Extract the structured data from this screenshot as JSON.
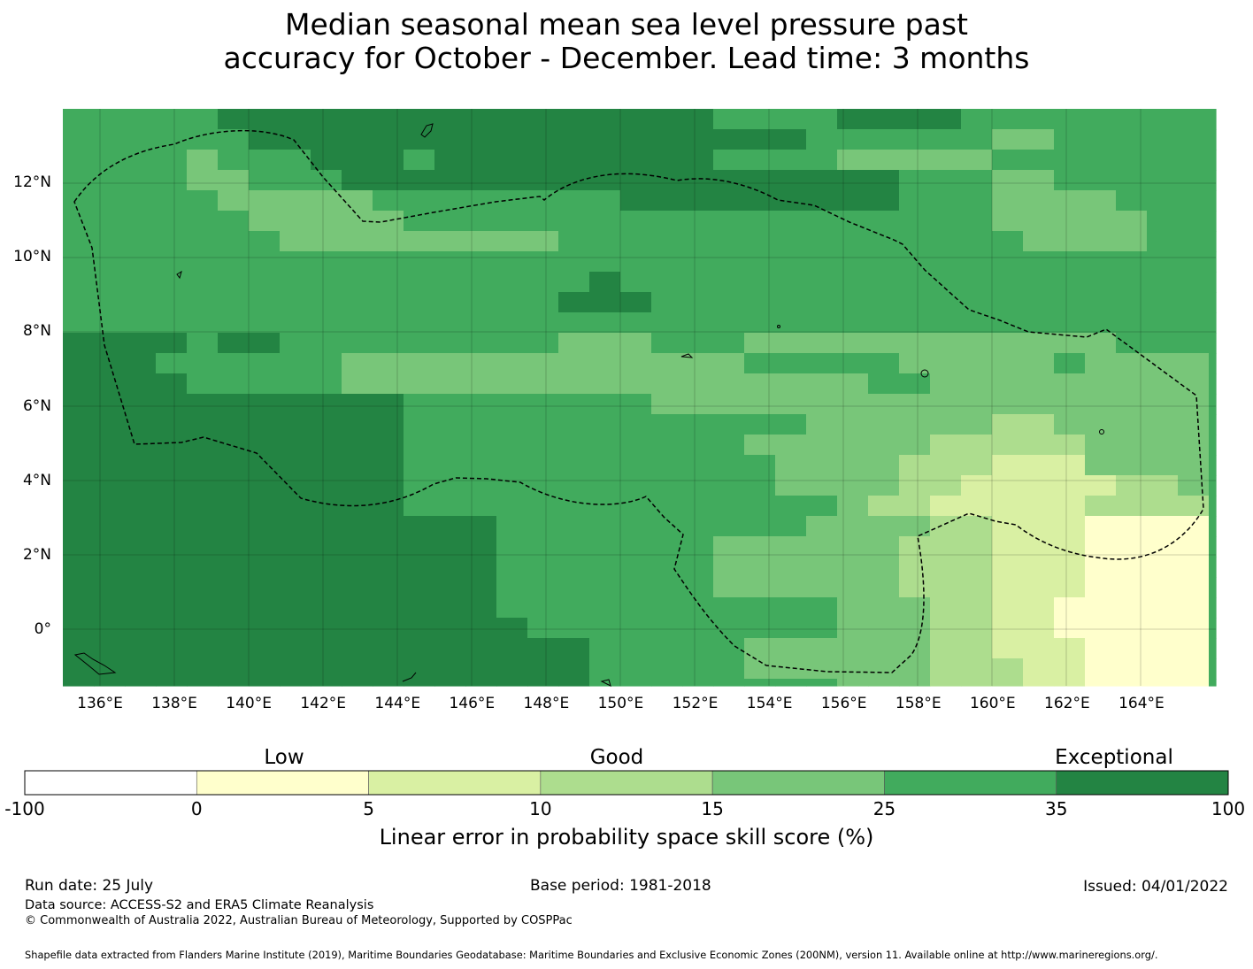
{
  "title": {
    "line1": "Median seasonal mean sea level pressure past",
    "line2": "accuracy for October - December. Lead time: 3 months"
  },
  "map": {
    "lon_labels": [
      "136°E",
      "138°E",
      "140°E",
      "142°E",
      "144°E",
      "146°E",
      "148°E",
      "150°E",
      "152°E",
      "154°E",
      "156°E",
      "158°E",
      "160°E",
      "162°E",
      "164°E"
    ],
    "lat_labels": [
      "12°N",
      "10°N",
      "8°N",
      "6°N",
      "4°N",
      "2°N",
      "0°"
    ],
    "lon_range": [
      135,
      166
    ],
    "lat_range": [
      -1.5,
      14
    ]
  },
  "colorbar": {
    "ticks": [
      "-100",
      "0",
      "5",
      "10",
      "15",
      "25",
      "35",
      "100"
    ],
    "colors": [
      "#ffffff",
      "#ffffcc",
      "#d9f0a3",
      "#addd8e",
      "#78c679",
      "#41ab5d",
      "#238443"
    ],
    "categories": [
      "Low",
      "Good",
      "Exceptional"
    ],
    "label": "Linear error in probability space skill score (%)"
  },
  "footer": {
    "run_date": "Run date: 25 July",
    "base_period": "Base period: 1981-2018",
    "issued": "Issued: 04/01/2022",
    "data_source": "Data source: ACCESS-S2 and ERA5 Climate Reanalysis",
    "copyright": "© Commonwealth of Australia 2022, Australian Bureau of Meteorology, Supported by COSPPac",
    "shapefile": "Shapefile data extracted from Flanders Marine Institute (2019), Maritime Boundaries Geodatabase: Maritime Boundaries and Exclusive Economic Zones (200NM), version 11. Available online at http://www.marineregions.org/."
  }
}
